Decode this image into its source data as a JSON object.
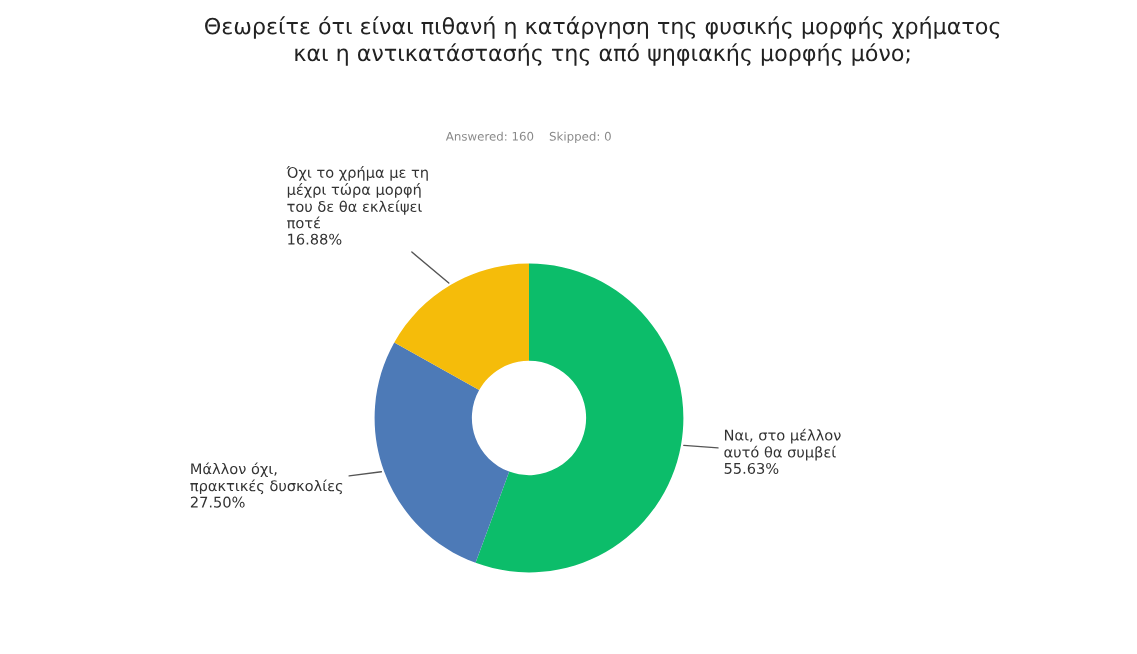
{
  "chart_data": {
    "type": "donut",
    "title": "Θεωρείτε ότι είναι πιθανή η κατάργηση της φυσικής μορφής χρήματος\nκαι η αντικατάστασής της από ψηφιακής μορφής μόνο;",
    "subtitle": "Answered: 160    Skipped: 0",
    "categories": [
      "Ναι, στο μέλλον\nαυτό θα συμβεί",
      "Μάλλον όχι,\nπρακτικές δυσκολίες",
      "Όχι το χρήμα με τη\nμέχρι τώρα μορφή\nτου δε θα εκλείψει\nποτέ"
    ],
    "values": [
      55.63,
      27.5,
      16.88
    ],
    "colors": [
      "#0cbd6a",
      "#4d7ab7",
      "#f5bc0a"
    ],
    "value_labels": [
      "55.63%",
      "27.50%",
      "16.88%"
    ]
  }
}
